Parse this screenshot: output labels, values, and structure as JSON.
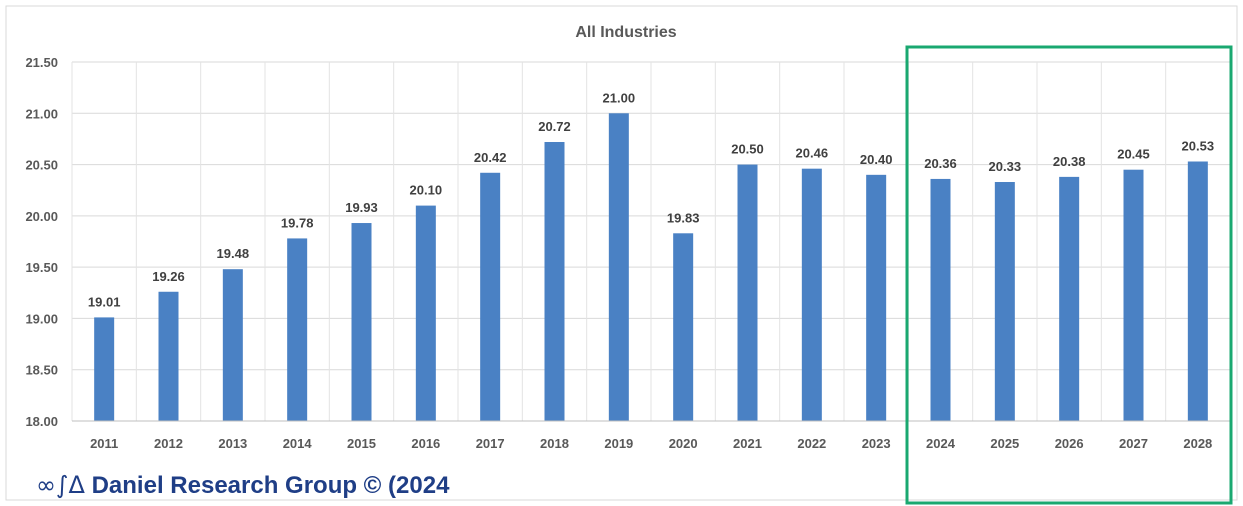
{
  "chart_data": {
    "type": "bar",
    "title": "All Industries",
    "categories": [
      "2011",
      "2012",
      "2013",
      "2014",
      "2015",
      "2016",
      "2017",
      "2018",
      "2019",
      "2020",
      "2021",
      "2022",
      "2023",
      "2024",
      "2025",
      "2026",
      "2027",
      "2028"
    ],
    "values": [
      19.01,
      19.26,
      19.48,
      19.78,
      19.93,
      20.1,
      20.42,
      20.72,
      21.0,
      19.83,
      20.5,
      20.46,
      20.4,
      20.36,
      20.33,
      20.38,
      20.45,
      20.53
    ],
    "value_labels": [
      "19.01",
      "19.26",
      "19.48",
      "19.78",
      "19.93",
      "20.10",
      "20.42",
      "20.72",
      "21.00",
      "19.83",
      "20.50",
      "20.46",
      "20.40",
      "20.36",
      "20.33",
      "20.38",
      "20.45",
      "20.53"
    ],
    "y_ticks": [
      "18.00",
      "18.50",
      "19.00",
      "19.50",
      "20.00",
      "20.50",
      "21.00",
      "21.50"
    ],
    "ylim": [
      18.0,
      21.5
    ],
    "grid": true,
    "bar_color": "#4a81c4",
    "highlight": {
      "from": "2024",
      "to": "2028",
      "color": "#1aa870"
    }
  },
  "credit": {
    "symbols": "∞∫Δ",
    "text": "Daniel Research Group © (2024"
  }
}
